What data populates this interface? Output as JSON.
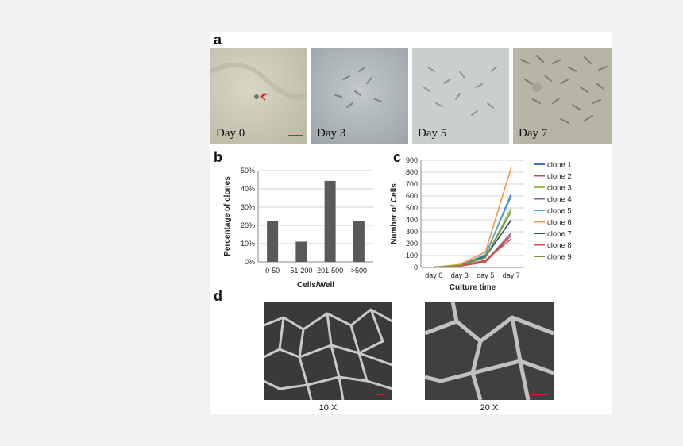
{
  "panels": {
    "a": {
      "letter": "a",
      "images": [
        {
          "label": "Day 0",
          "tone": "#c9c8b6"
        },
        {
          "label": "Day 3",
          "tone": "#aeb6b9"
        },
        {
          "label": "Day 5",
          "tone": "#c7cdcc"
        },
        {
          "label": "Day 7",
          "tone": "#b6b4a4"
        }
      ]
    },
    "b": {
      "letter": "b"
    },
    "c": {
      "letter": "c"
    },
    "d": {
      "letter": "d",
      "captions": [
        "10 X",
        "20 X"
      ]
    }
  },
  "chart_data": [
    {
      "panel": "b",
      "type": "bar",
      "categories": [
        "0-50",
        "51-200",
        "201-500",
        ">500"
      ],
      "values": [
        22.2,
        11.1,
        44.4,
        22.2
      ],
      "ylabel": "Percentage of clones",
      "xlabel": "Cells/Well",
      "ylim": [
        0,
        50
      ],
      "yticks": [
        "0%",
        "10%",
        "20%",
        "30%",
        "40%",
        "50%"
      ],
      "grid": true,
      "color": "#595959"
    },
    {
      "panel": "c",
      "type": "line",
      "x": [
        "day 0",
        "day 3",
        "day 5",
        "day 7"
      ],
      "ylabel": "Number of Cells",
      "xlabel": "Culture time",
      "ylim": [
        0,
        900
      ],
      "yticks": [
        "0",
        "100",
        "200",
        "300",
        "400",
        "500",
        "600",
        "700",
        "800",
        "900"
      ],
      "grid": true,
      "legend_position": "right",
      "series": [
        {
          "name": "clone 1",
          "color": "#4472c4",
          "values": [
            1,
            15,
            100,
            620
          ]
        },
        {
          "name": "clone 2",
          "color": "#c0504d",
          "values": [
            1,
            12,
            60,
            240
          ]
        },
        {
          "name": "clone 3",
          "color": "#9bbb59",
          "values": [
            1,
            14,
            80,
            500
          ]
        },
        {
          "name": "clone 4",
          "color": "#8064a2",
          "values": [
            1,
            10,
            50,
            290
          ]
        },
        {
          "name": "clone 5",
          "color": "#4bacc6",
          "values": [
            1,
            16,
            110,
            600
          ]
        },
        {
          "name": "clone 6",
          "color": "#f79646",
          "values": [
            1,
            25,
            130,
            840
          ]
        },
        {
          "name": "clone 7",
          "color": "#2c4d75",
          "values": [
            1,
            13,
            90,
            400
          ]
        },
        {
          "name": "clone 8",
          "color": "#d94b4b",
          "values": [
            1,
            11,
            45,
            270
          ]
        },
        {
          "name": "clone 9",
          "color": "#77933c",
          "values": [
            1,
            15,
            85,
            470
          ]
        }
      ]
    }
  ]
}
